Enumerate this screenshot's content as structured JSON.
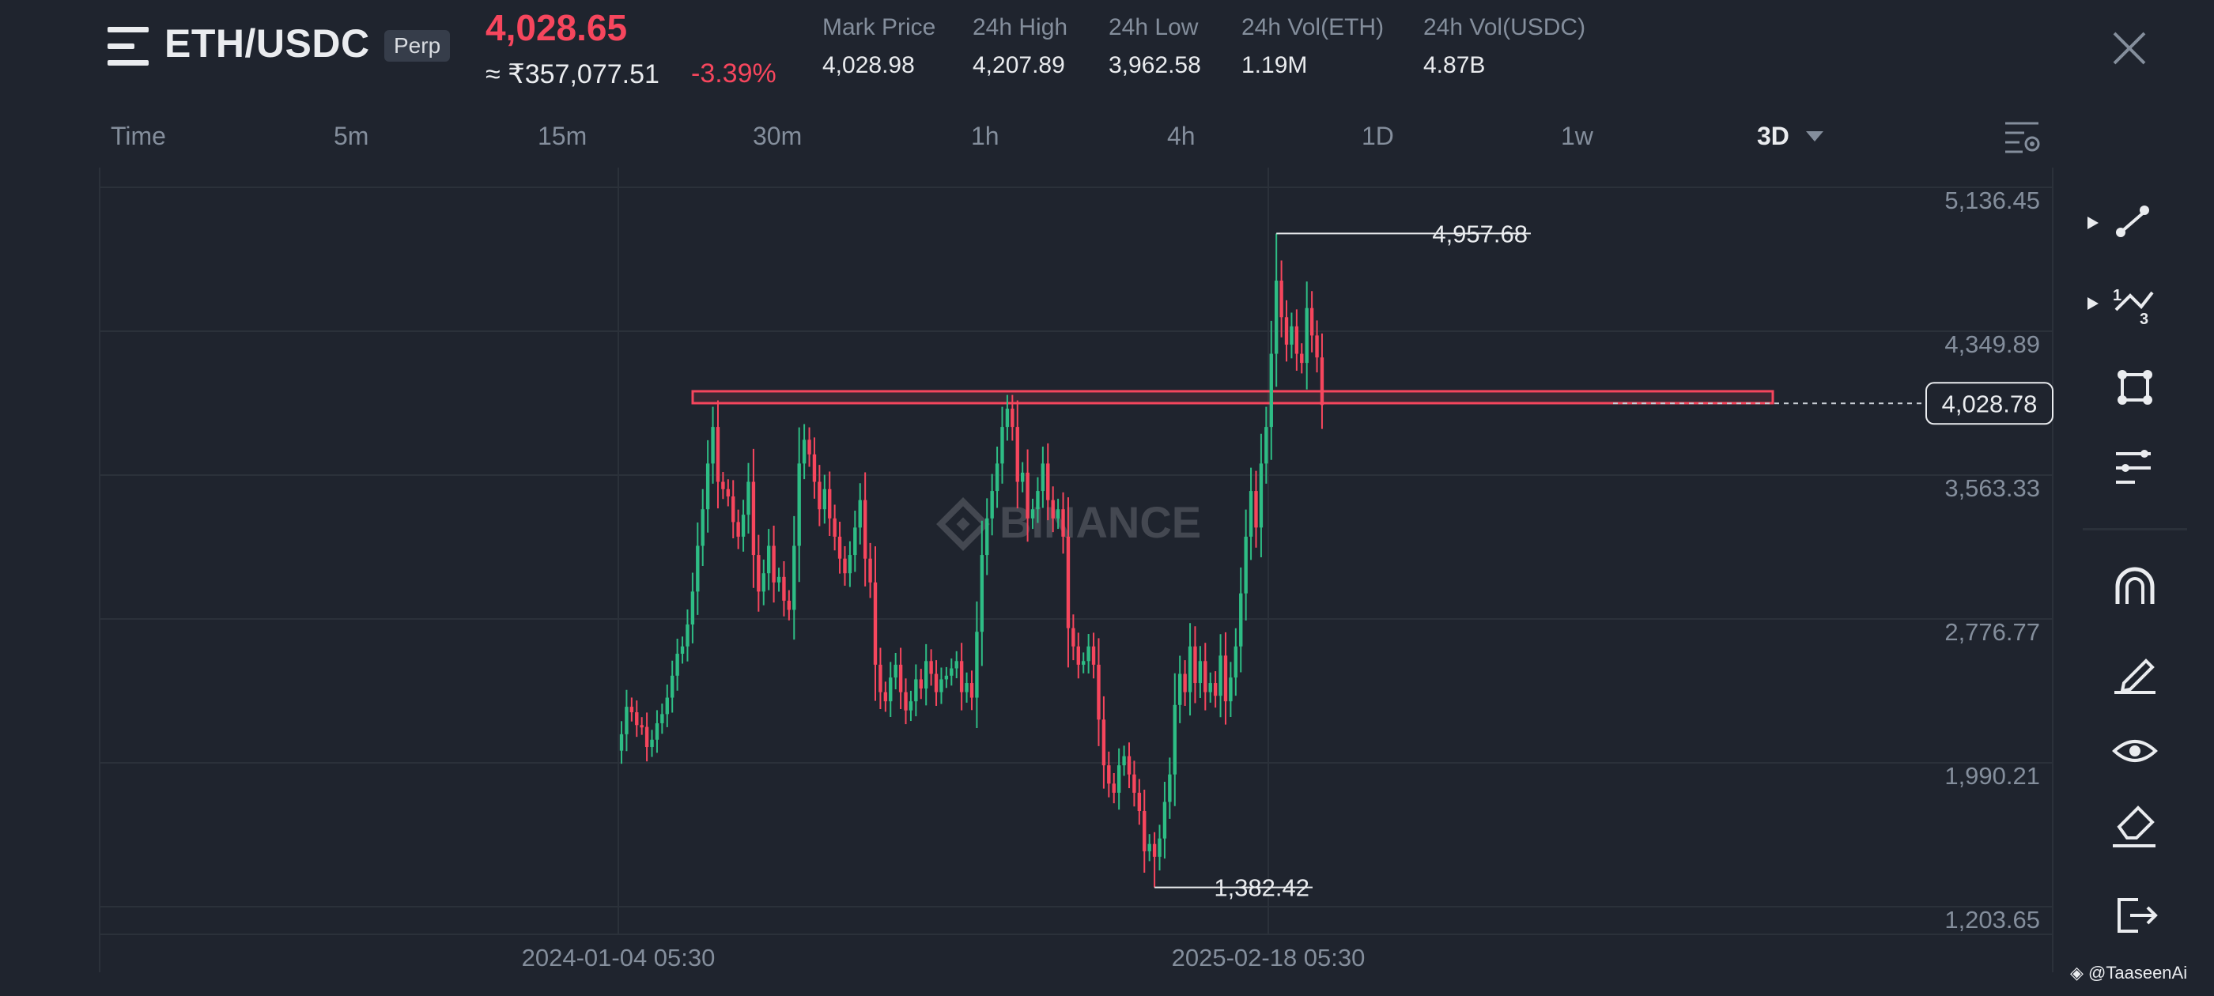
{
  "header": {
    "pair": "ETH/USDC",
    "badge": "Perp",
    "last_price": "4,028.65",
    "inr_price": "≈ ₹357,077.51",
    "change_pct": "-3.39%",
    "stats": [
      {
        "label": "Mark Price",
        "value": "4,028.98"
      },
      {
        "label": "24h High",
        "value": "4,207.89"
      },
      {
        "label": "24h Low",
        "value": "3,962.58"
      },
      {
        "label": "24h Vol(ETH)",
        "value": "1.19M"
      },
      {
        "label": "24h Vol(USDC)",
        "value": "4.87B"
      }
    ]
  },
  "timeframes": {
    "items": [
      "Time",
      "5m",
      "15m",
      "30m",
      "1h",
      "4h",
      "1D",
      "1w",
      "3D"
    ],
    "selected": "3D"
  },
  "toolbar": {
    "tools": [
      "trend-line-icon",
      "fib-icon",
      "shape-icon",
      "indicator-settings-icon",
      "magnet-icon",
      "pencil-icon",
      "eye-icon",
      "eraser-icon",
      "exit-icon"
    ]
  },
  "credit": "@TaaseenAi",
  "watermark": "BINANCE",
  "colors": {
    "background": "#1f242e",
    "up": "#2ebd85",
    "down": "#f6465d",
    "grid": "#2b313a",
    "muted": "#848e9c",
    "zone": "#f6465d"
  },
  "chart_data": {
    "type": "candlestick",
    "title": "ETH/USDC Perp",
    "interval": "3D",
    "y_ticks": [
      "5,136.45",
      "4,349.89",
      "3,563.33",
      "2,776.77",
      "1,990.21",
      "1,203.65"
    ],
    "y_tick_values": [
      5136.45,
      4349.89,
      3563.33,
      2776.77,
      1990.21,
      1203.65
    ],
    "ylim": [
      1203.65,
      5136.45
    ],
    "x_ticks": [
      "2024-01-04 05:30",
      "2025-02-18 05:30"
    ],
    "current_price_label": "4,028.78",
    "current_price": 4028.78,
    "high_label": "4,957.68",
    "high_value": 4957.68,
    "low_label": "1,382.42",
    "low_value": 1382.42,
    "resistance_zone": [
      4030,
      4095
    ],
    "grid": true,
    "closes": [
      2220,
      2370,
      2340,
      2270,
      2260,
      2150,
      2190,
      2280,
      2330,
      2420,
      2540,
      2660,
      2700,
      2820,
      3000,
      3250,
      3450,
      3700,
      3900,
      3600,
      3560,
      3520,
      3380,
      3300,
      3420,
      3600,
      3200,
      3000,
      3100,
      3250,
      3050,
      3080,
      2950,
      2900,
      3250,
      3700,
      3830,
      3750,
      3600,
      3450,
      3560,
      3400,
      3300,
      3180,
      3100,
      3200,
      3350,
      3500,
      3180,
      3050,
      2600,
      2450,
      2400,
      2530,
      2600,
      2450,
      2350,
      2400,
      2520,
      2470,
      2620,
      2550,
      2450,
      2520,
      2540,
      2580,
      2620,
      2450,
      2500,
      2420,
      2780,
      3200,
      3400,
      3550,
      3700,
      3900,
      4000,
      3900,
      3600,
      3650,
      3400,
      3450,
      3550,
      3700,
      3500,
      3400,
      3450,
      3300,
      2800,
      2700,
      2600,
      2620,
      2700,
      2600,
      2300,
      2050,
      1950,
      1900,
      2050,
      2100,
      2000,
      1900,
      1800,
      1580,
      1620,
      1550,
      1650,
      1850,
      2000,
      2380,
      2550,
      2450,
      2700,
      2500,
      2620,
      2450,
      2500,
      2430,
      2650,
      2400,
      2530,
      2700,
      2990,
      3300,
      3550,
      3350,
      3700,
      3900,
      4300,
      4700,
      4500,
      4350,
      4450,
      4300,
      4250,
      4550,
      4400,
      4280,
      4020
    ]
  }
}
